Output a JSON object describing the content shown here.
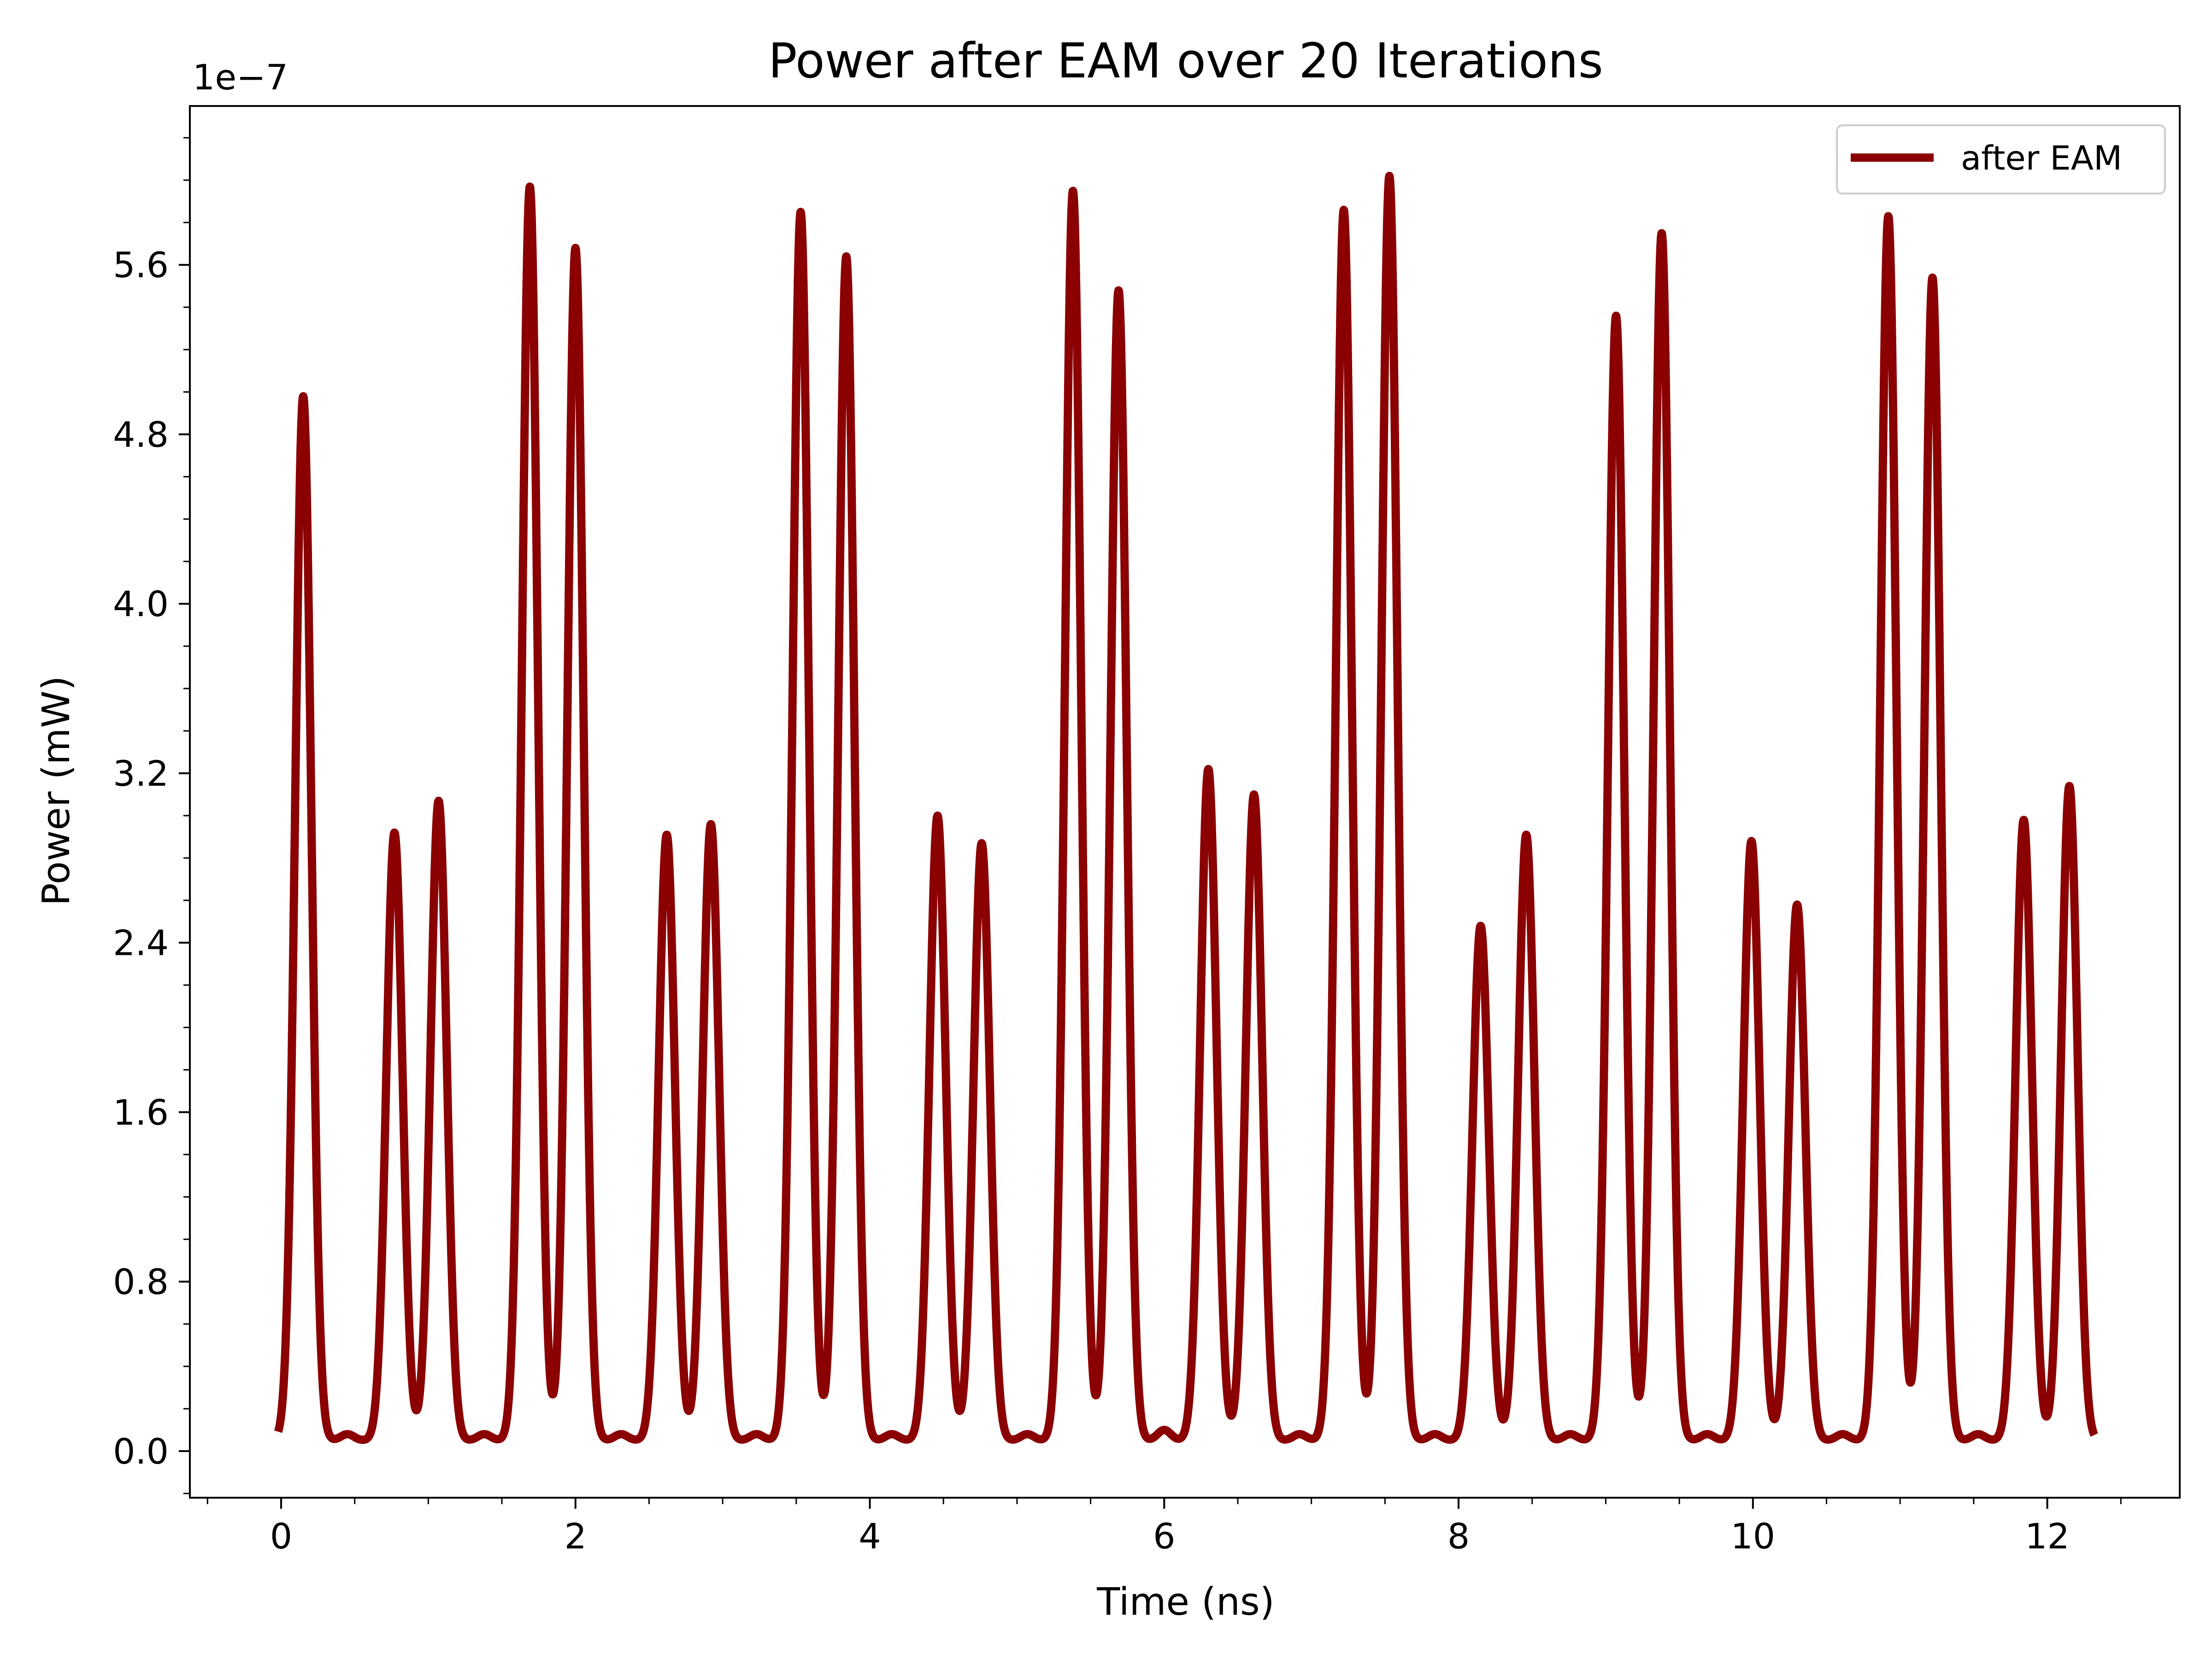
{
  "chart_data": {
    "type": "line",
    "title": "Power after EAM over 20 Iterations",
    "xlabel": "Time (ns)",
    "ylabel": "Power (mW)",
    "y_offset_label": "1e−7",
    "y_scale_factor": 1e-07,
    "xlim": [
      -0.62,
      12.9
    ],
    "ylim": [
      -0.22,
      6.35
    ],
    "x_ticks": [
      0,
      2,
      4,
      6,
      8,
      10,
      12
    ],
    "x_tick_labels": [
      "0",
      "2",
      "4",
      "6",
      "8",
      "10",
      "12"
    ],
    "y_ticks": [
      0.0,
      0.8,
      1.6,
      2.4,
      3.2,
      4.0,
      4.8,
      5.6
    ],
    "y_tick_labels": [
      "0.0",
      "0.8",
      "1.6",
      "2.4",
      "3.2",
      "4.0",
      "4.8",
      "5.6"
    ],
    "grid": false,
    "legend_position": "top-right",
    "line_color": "#8b0000",
    "series": [
      {
        "name": "after EAM",
        "baseline": 0.05,
        "pulse_half_width": 0.055,
        "peaks_x": [
          0.15,
          0.77,
          1.07,
          1.69,
          2.0,
          2.62,
          2.92,
          3.53,
          3.84,
          4.46,
          4.76,
          5.38,
          5.69,
          6.3,
          6.61,
          7.22,
          7.53,
          8.15,
          8.46,
          9.07,
          9.38,
          9.99,
          10.3,
          10.92,
          11.22,
          11.84,
          12.15
        ],
        "peaks_y": [
          4.98,
          2.92,
          3.07,
          5.97,
          5.68,
          2.91,
          2.96,
          5.85,
          5.64,
          3.0,
          2.87,
          5.95,
          5.48,
          3.22,
          3.1,
          5.86,
          6.02,
          2.48,
          2.91,
          5.36,
          5.75,
          2.88,
          2.58,
          5.83,
          5.54,
          2.98,
          3.14
        ],
        "ripple_x": [
          0.45,
          1.38,
          2.31,
          3.23,
          4.15,
          5.07,
          6.0,
          6.92,
          7.84,
          8.76,
          9.69,
          10.61,
          11.53
        ],
        "ripple_y": [
          0.08,
          0.08,
          0.08,
          0.08,
          0.08,
          0.08,
          0.1,
          0.08,
          0.08,
          0.08,
          0.08,
          0.08,
          0.08
        ],
        "x_range": [
          -0.02,
          12.32
        ]
      }
    ]
  }
}
